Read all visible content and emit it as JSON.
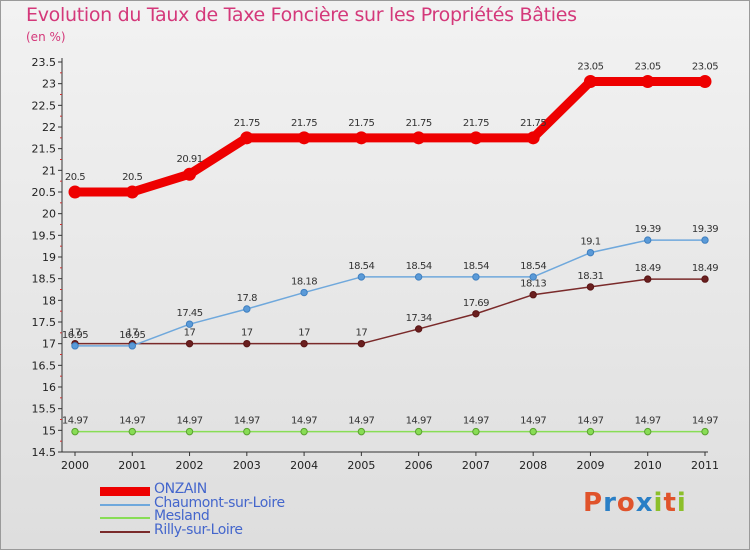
{
  "header": {
    "title": "Evolution du Taux de Taxe Foncière sur les Propriétés Bâties",
    "subtitle": "(en %)"
  },
  "logo": {
    "text": "Proxiti",
    "letter_colors": [
      "#e0532b",
      "#2a7fc6",
      "#e0532b",
      "#2a7fc6",
      "#8cbf2a",
      "#e0532b",
      "#8cbf2a"
    ]
  },
  "chart_data": {
    "type": "line",
    "title": "Evolution du Taux de Taxe Foncière sur les Propriétés Bâties",
    "ylabel": "(en %)",
    "xlabel": "",
    "x": [
      "2000",
      "2001",
      "2002",
      "2003",
      "2004",
      "2005",
      "2006",
      "2007",
      "2008",
      "2009",
      "2010",
      "2011"
    ],
    "ylim": [
      14.5,
      23.5
    ],
    "yticks": [
      "14.5",
      "15",
      "15.5",
      "16",
      "16.5",
      "17",
      "17.5",
      "18",
      "18.5",
      "19",
      "19.5",
      "20",
      "20.5",
      "21",
      "21.5",
      "22",
      "22.5",
      "23",
      "23.5"
    ],
    "grid": false,
    "legend_position": "bottom-left",
    "series": [
      {
        "name": "ONZAIN",
        "color": "#ee0000",
        "values": [
          20.5,
          20.5,
          20.91,
          21.75,
          21.75,
          21.75,
          21.75,
          21.75,
          21.75,
          23.05,
          23.05,
          23.05
        ],
        "labels": [
          "20.5",
          "20.5",
          "20.91",
          "21.75",
          "21.75",
          "21.75",
          "21.75",
          "21.75",
          "21.75",
          "23.05",
          "23.05",
          "23.05"
        ]
      },
      {
        "name": "Chaumont-sur-Loire",
        "color": "#6fa8dc",
        "values": [
          16.95,
          16.95,
          17.45,
          17.8,
          18.18,
          18.54,
          18.54,
          18.54,
          18.54,
          19.1,
          19.39,
          19.39
        ],
        "labels": [
          "16.95",
          "16.95",
          "17.45",
          "17.8",
          "18.18",
          "18.54",
          "18.54",
          "18.54",
          "18.54",
          "19.1",
          "19.39",
          "19.39"
        ]
      },
      {
        "name": "Mesland",
        "color": "#88dd55",
        "values": [
          14.97,
          14.97,
          14.97,
          14.97,
          14.97,
          14.97,
          14.97,
          14.97,
          14.97,
          14.97,
          14.97,
          14.97
        ],
        "labels": [
          "14.97",
          "14.97",
          "14.97",
          "14.97",
          "14.97",
          "14.97",
          "14.97",
          "14.97",
          "14.97",
          "14.97",
          "14.97",
          "14.97"
        ]
      },
      {
        "name": "Rilly-sur-Loire",
        "color": "#7a2a2a",
        "values": [
          17,
          17,
          17,
          17,
          17,
          17,
          17.34,
          17.69,
          18.13,
          18.31,
          18.49,
          18.49
        ],
        "labels": [
          "17",
          "17",
          "17",
          "17",
          "17",
          "17",
          "17.34",
          "17.69",
          "18.13",
          "18.31",
          "18.49",
          "18.49"
        ]
      }
    ]
  }
}
